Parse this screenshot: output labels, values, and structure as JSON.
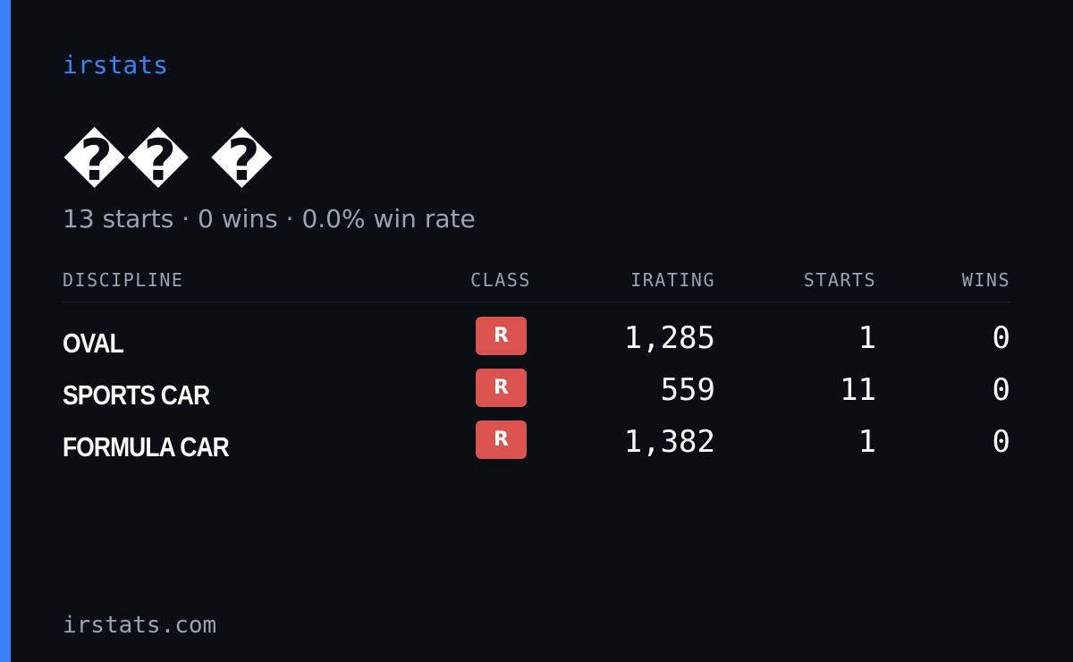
{
  "header": {
    "brand": "irstats"
  },
  "profile": {
    "name": "�� �",
    "summary": "13 starts · 0 wins · 0.0% win rate"
  },
  "table": {
    "columns": [
      "DISCIPLINE",
      "CLASS",
      "IRATING",
      "STARTS",
      "WINS"
    ],
    "rows": [
      [
        "OVAL",
        "R",
        "1,285",
        "1",
        "0"
      ],
      [
        "SPORTS CAR",
        "R",
        "559",
        "11",
        "0"
      ],
      [
        "FORMULA CAR",
        "R",
        "1,382",
        "1",
        "0"
      ]
    ]
  },
  "footer": {
    "site": "irstats.com"
  }
}
